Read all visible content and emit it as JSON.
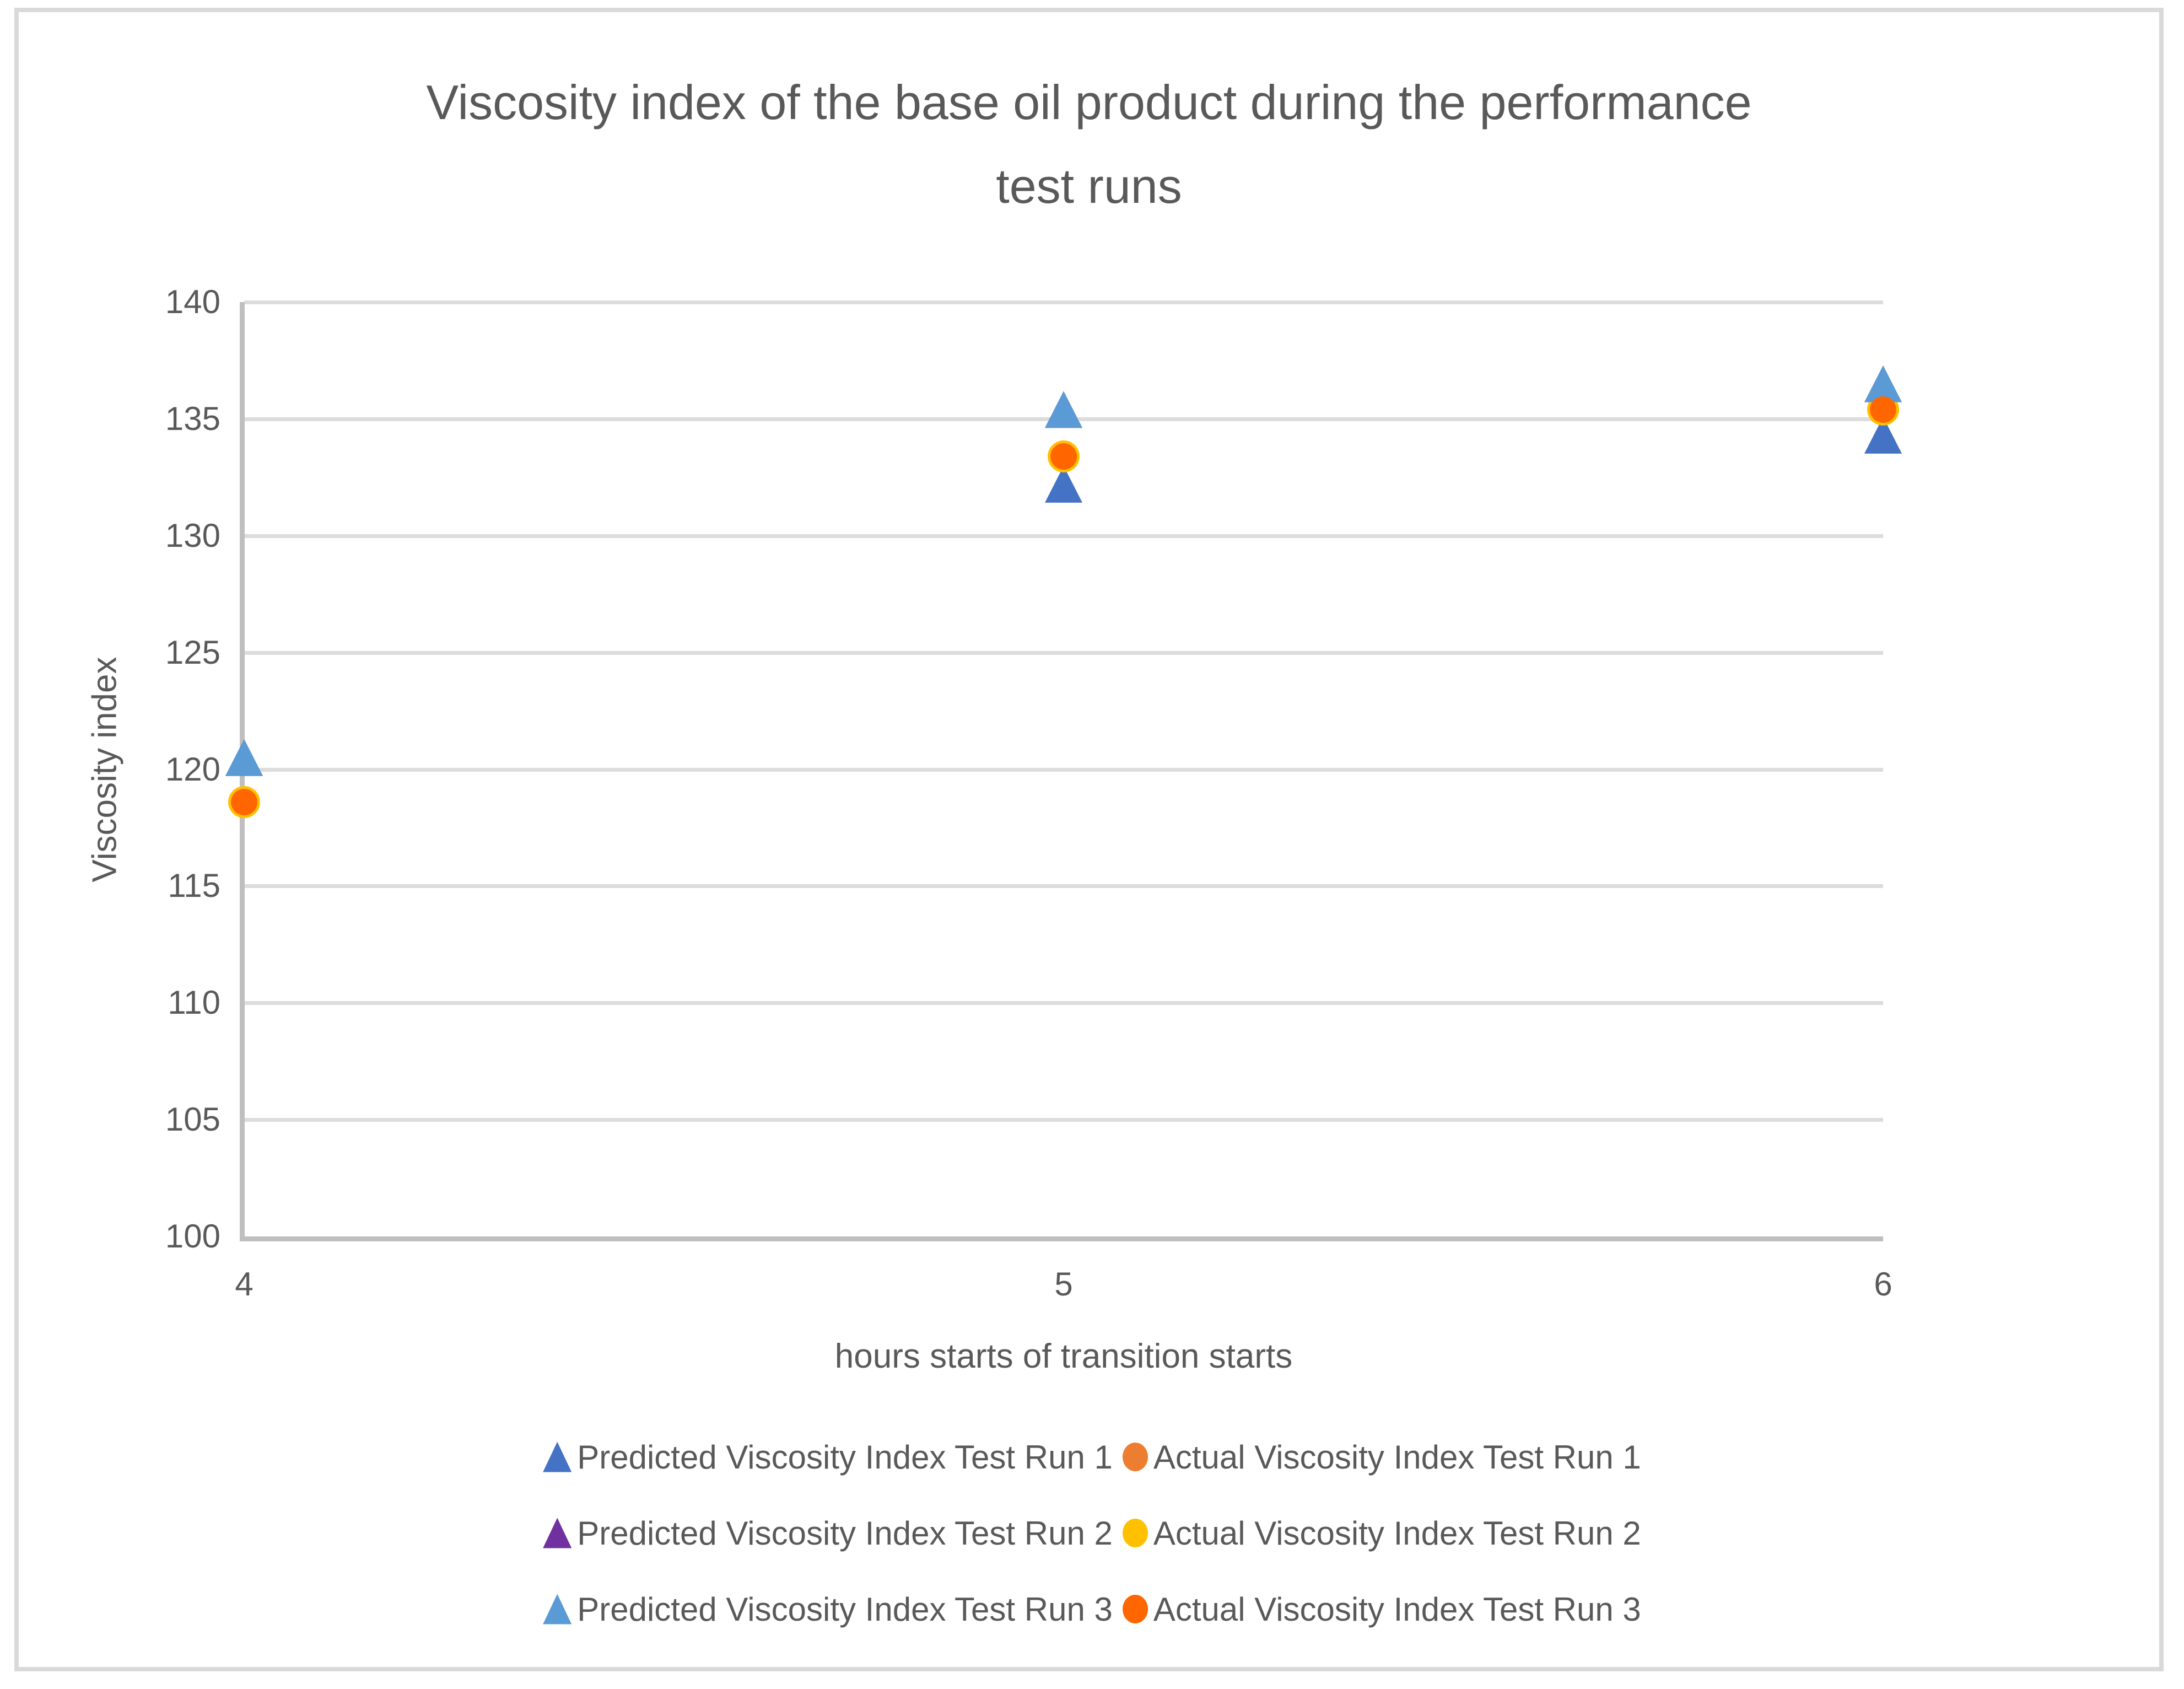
{
  "chart_data": {
    "type": "scatter",
    "title": "Viscosity index of the base oil product during the performance test runs",
    "title_lines": [
      "Viscosity index of the base oil product during the performance",
      "test runs"
    ],
    "xlabel": "hours starts of transition starts",
    "ylabel": "Viscosity index",
    "xlim": [
      4,
      6
    ],
    "ylim": [
      100,
      140
    ],
    "x_ticks": [
      4,
      5,
      6
    ],
    "y_ticks": [
      100,
      105,
      110,
      115,
      120,
      125,
      130,
      135,
      140
    ],
    "grid": "horizontal",
    "legend_position": "bottom",
    "x": [
      4,
      5,
      6
    ],
    "series": [
      {
        "name": "Predicted Viscosity Index Test Run 1",
        "marker": "triangle",
        "color": "#4472c4",
        "values": [
          120.5,
          132.2,
          134.3
        ]
      },
      {
        "name": "Actual Viscosity Index Test Run 1",
        "marker": "circle",
        "color": "#ed7d31",
        "values": [
          118.6,
          133.4,
          135.4
        ]
      },
      {
        "name": "Predicted Viscosity Index Test Run 2",
        "marker": "triangle",
        "color": "#7030a0",
        "values": [
          120.5,
          135.4,
          136.5
        ]
      },
      {
        "name": "Actual Viscosity Index Test Run 2",
        "marker": "circle",
        "color": "#ffc000",
        "values": [
          118.6,
          133.4,
          135.4
        ]
      },
      {
        "name": "Predicted Viscosity Index Test Run 3",
        "marker": "triangle",
        "color": "#5b9bd5",
        "values": [
          120.5,
          135.4,
          136.5
        ]
      },
      {
        "name": "Actual Viscosity Index Test Run 3",
        "marker": "circle",
        "color": "#ff6600",
        "values": [
          118.6,
          133.4,
          135.4
        ]
      }
    ]
  },
  "colors": {
    "text": "#595959",
    "gridline": "#dcdcdc",
    "axis_line": "#bfbfbf",
    "frame_border": "#d9d9d9",
    "background": "#ffffff"
  }
}
